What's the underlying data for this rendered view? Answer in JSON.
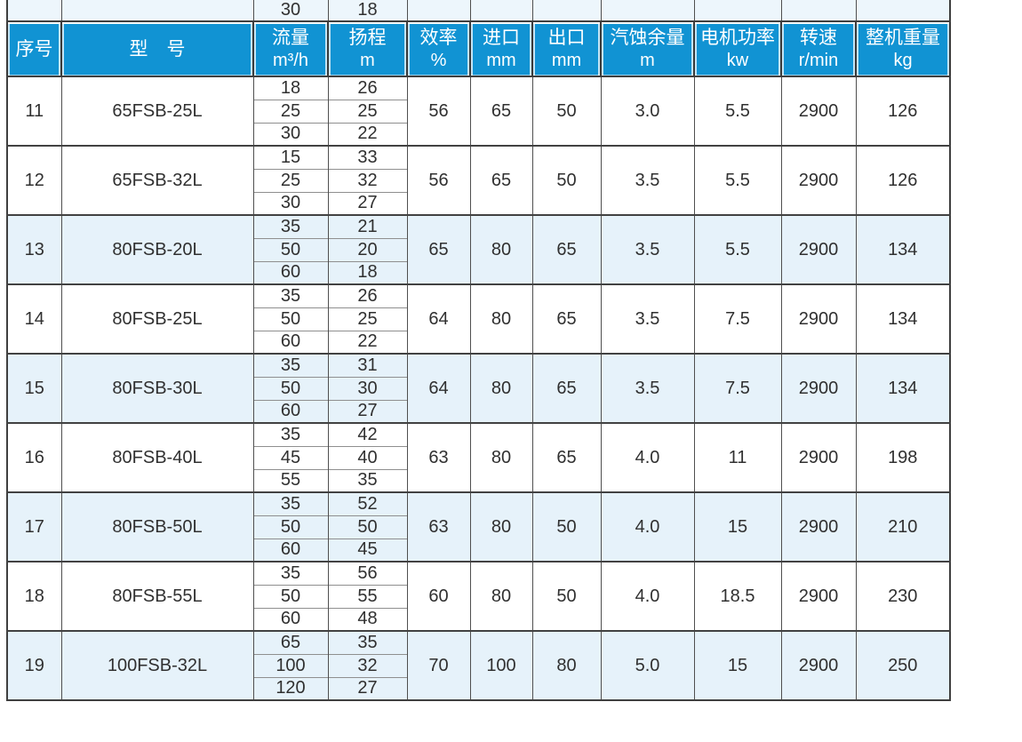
{
  "table": {
    "partial_row": {
      "flow": "30",
      "head": "18"
    },
    "header": {
      "seq": "序号",
      "model": "型　号",
      "cols": [
        {
          "l1": "流量",
          "l2": "m³/h"
        },
        {
          "l1": "扬程",
          "l2": "m"
        },
        {
          "l1": "效率",
          "l2": "%"
        },
        {
          "l1": "进口",
          "l2": "mm"
        },
        {
          "l1": "出口",
          "l2": "mm"
        },
        {
          "l1": "汽蚀余量",
          "l2": "m"
        },
        {
          "l1": "电机功率",
          "l2": "kw"
        },
        {
          "l1": "转速",
          "l2": "r/min"
        },
        {
          "l1": "整机重量",
          "l2": "kg"
        }
      ]
    },
    "rows": [
      {
        "seq": "11",
        "model": "65FSB-25L",
        "points": [
          [
            "18",
            "26"
          ],
          [
            "25",
            "25"
          ],
          [
            "30",
            "22"
          ]
        ],
        "eff": "56",
        "inlet": "65",
        "outlet": "50",
        "npsh": "3.0",
        "power": "5.5",
        "speed": "2900",
        "weight": "126",
        "striped": false
      },
      {
        "seq": "12",
        "model": "65FSB-32L",
        "points": [
          [
            "15",
            "33"
          ],
          [
            "25",
            "32"
          ],
          [
            "30",
            "27"
          ]
        ],
        "eff": "56",
        "inlet": "65",
        "outlet": "50",
        "npsh": "3.5",
        "power": "5.5",
        "speed": "2900",
        "weight": "126",
        "striped": false
      },
      {
        "seq": "13",
        "model": "80FSB-20L",
        "points": [
          [
            "35",
            "21"
          ],
          [
            "50",
            "20"
          ],
          [
            "60",
            "18"
          ]
        ],
        "eff": "65",
        "inlet": "80",
        "outlet": "65",
        "npsh": "3.5",
        "power": "5.5",
        "speed": "2900",
        "weight": "134",
        "striped": true
      },
      {
        "seq": "14",
        "model": "80FSB-25L",
        "points": [
          [
            "35",
            "26"
          ],
          [
            "50",
            "25"
          ],
          [
            "60",
            "22"
          ]
        ],
        "eff": "64",
        "inlet": "80",
        "outlet": "65",
        "npsh": "3.5",
        "power": "7.5",
        "speed": "2900",
        "weight": "134",
        "striped": false
      },
      {
        "seq": "15",
        "model": "80FSB-30L",
        "points": [
          [
            "35",
            "31"
          ],
          [
            "50",
            "30"
          ],
          [
            "60",
            "27"
          ]
        ],
        "eff": "64",
        "inlet": "80",
        "outlet": "65",
        "npsh": "3.5",
        "power": "7.5",
        "speed": "2900",
        "weight": "134",
        "striped": true
      },
      {
        "seq": "16",
        "model": "80FSB-40L",
        "points": [
          [
            "35",
            "42"
          ],
          [
            "45",
            "40"
          ],
          [
            "55",
            "35"
          ]
        ],
        "eff": "63",
        "inlet": "80",
        "outlet": "65",
        "npsh": "4.0",
        "power": "11",
        "speed": "2900",
        "weight": "198",
        "striped": false
      },
      {
        "seq": "17",
        "model": "80FSB-50L",
        "points": [
          [
            "35",
            "52"
          ],
          [
            "50",
            "50"
          ],
          [
            "60",
            "45"
          ]
        ],
        "eff": "63",
        "inlet": "80",
        "outlet": "50",
        "npsh": "4.0",
        "power": "15",
        "speed": "2900",
        "weight": "210",
        "striped": true
      },
      {
        "seq": "18",
        "model": "80FSB-55L",
        "points": [
          [
            "35",
            "56"
          ],
          [
            "50",
            "55"
          ],
          [
            "60",
            "48"
          ]
        ],
        "eff": "60",
        "inlet": "80",
        "outlet": "50",
        "npsh": "4.0",
        "power": "18.5",
        "speed": "2900",
        "weight": "230",
        "striped": false
      },
      {
        "seq": "19",
        "model": "100FSB-32L",
        "points": [
          [
            "65",
            "35"
          ],
          [
            "100",
            "32"
          ],
          [
            "120",
            "27"
          ]
        ],
        "eff": "70",
        "inlet": "100",
        "outlet": "80",
        "npsh": "5.0",
        "power": "15",
        "speed": "2900",
        "weight": "250",
        "striped": true
      }
    ]
  },
  "colors": {
    "header_blue": "#1193d3",
    "stripe_blue": "#e6f2fa",
    "partial_row_blue": "#edf6fc",
    "grid_dark": "#3f3f3f",
    "sub_divider_gray": "#8f8f8f",
    "text": "#303030"
  }
}
